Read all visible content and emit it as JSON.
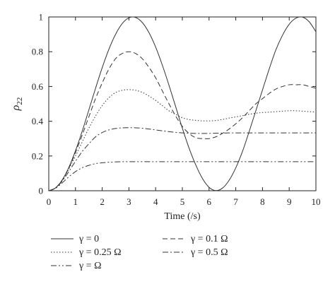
{
  "chart_data": {
    "type": "line",
    "title": "",
    "xlabel": "Time (/s)",
    "ylabel_base": "ρ",
    "ylabel_sub": "22",
    "xlim": [
      0,
      10
    ],
    "ylim": [
      0,
      1
    ],
    "xticks": [
      0,
      1,
      2,
      3,
      4,
      5,
      6,
      7,
      8,
      9,
      10
    ],
    "yticks": [
      0,
      0.2,
      0.4,
      0.6,
      0.8,
      1
    ],
    "grid": false,
    "legend_position": "bottom",
    "x": [
      0,
      0.25,
      0.5,
      0.75,
      1,
      1.25,
      1.5,
      1.75,
      2,
      2.25,
      2.5,
      2.75,
      3,
      3.25,
      3.5,
      3.75,
      4,
      4.25,
      4.5,
      4.75,
      5,
      5.25,
      5.5,
      5.75,
      6,
      6.25,
      6.5,
      6.75,
      7,
      7.25,
      7.5,
      7.75,
      8,
      8.25,
      8.5,
      8.75,
      9,
      9.25,
      9.5,
      9.75,
      10
    ],
    "series": [
      {
        "name": "γ = 0",
        "dash": "solid",
        "values": [
          0,
          0.016,
          0.061,
          0.134,
          0.23,
          0.342,
          0.465,
          0.589,
          0.708,
          0.814,
          0.9,
          0.962,
          0.995,
          0.997,
          0.968,
          0.91,
          0.827,
          0.723,
          0.607,
          0.484,
          0.36,
          0.246,
          0.149,
          0.071,
          0.02,
          0.001,
          0.015,
          0.06,
          0.132,
          0.226,
          0.34,
          0.46,
          0.58,
          0.7,
          0.81,
          0.895,
          0.958,
          0.993,
          0.999,
          0.972,
          0.915
        ]
      },
      {
        "name": "γ = 0.1 Ω",
        "dash": "dashed",
        "values": [
          0,
          0.016,
          0.061,
          0.13,
          0.22,
          0.32,
          0.425,
          0.53,
          0.62,
          0.7,
          0.76,
          0.79,
          0.8,
          0.79,
          0.76,
          0.71,
          0.65,
          0.575,
          0.5,
          0.43,
          0.37,
          0.33,
          0.305,
          0.3,
          0.3,
          0.31,
          0.33,
          0.355,
          0.385,
          0.42,
          0.46,
          0.5,
          0.53,
          0.56,
          0.585,
          0.6,
          0.61,
          0.61,
          0.61,
          0.6,
          0.59
        ]
      },
      {
        "name": "γ = 0.25 Ω",
        "dash": "dotted",
        "values": [
          0,
          0.016,
          0.06,
          0.125,
          0.2,
          0.28,
          0.36,
          0.43,
          0.49,
          0.535,
          0.565,
          0.578,
          0.582,
          0.578,
          0.566,
          0.545,
          0.52,
          0.49,
          0.46,
          0.44,
          0.42,
          0.41,
          0.405,
          0.402,
          0.402,
          0.404,
          0.41,
          0.418,
          0.425,
          0.432,
          0.44,
          0.446,
          0.45,
          0.452,
          0.455,
          0.458,
          0.46,
          0.46,
          0.458,
          0.455,
          0.453
        ]
      },
      {
        "name": "γ = 0.5 Ω",
        "dash": "dashdot",
        "values": [
          0,
          0.015,
          0.055,
          0.11,
          0.17,
          0.225,
          0.27,
          0.31,
          0.335,
          0.35,
          0.358,
          0.362,
          0.363,
          0.362,
          0.36,
          0.355,
          0.35,
          0.345,
          0.34,
          0.336,
          0.333,
          0.331,
          0.33,
          0.33,
          0.33,
          0.331,
          0.332,
          0.333,
          0.333,
          0.333,
          0.333,
          0.333,
          0.333,
          0.333,
          0.333,
          0.333,
          0.333,
          0.333,
          0.333,
          0.333,
          0.333
        ]
      },
      {
        "name": "γ = Ω",
        "dash": "dashdotdot",
        "values": [
          0,
          0.014,
          0.045,
          0.08,
          0.11,
          0.132,
          0.146,
          0.156,
          0.161,
          0.164,
          0.166,
          0.167,
          0.167,
          0.167,
          0.167,
          0.167,
          0.167,
          0.167,
          0.167,
          0.167,
          0.167,
          0.167,
          0.167,
          0.167,
          0.167,
          0.167,
          0.167,
          0.167,
          0.167,
          0.167,
          0.167,
          0.167,
          0.167,
          0.167,
          0.167,
          0.167,
          0.167,
          0.167,
          0.167,
          0.167,
          0.167
        ]
      }
    ]
  }
}
